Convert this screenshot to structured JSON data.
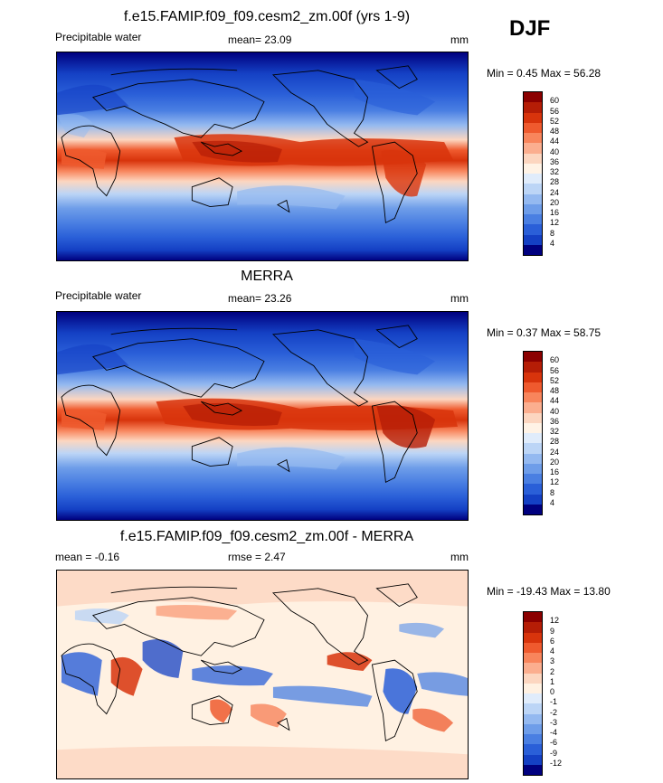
{
  "season": "DJF",
  "panels": [
    {
      "title": "f.e15.FAMIP.f09_f09.cesm2_zm.00f (yrs 1-9)",
      "left_label": "Precipitable water",
      "center_label": "mean=  23.09",
      "units": "mm",
      "minmax": "Min =   0.45 Max =  56.28",
      "colorbar": {
        "ticks": [
          "60",
          "56",
          "52",
          "48",
          "44",
          "40",
          "36",
          "32",
          "28",
          "24",
          "20",
          "16",
          "12",
          "8",
          "4"
        ],
        "colors": [
          "#8b0000",
          "#b51d06",
          "#d8340c",
          "#ef5a2e",
          "#f8855c",
          "#fbae8f",
          "#fcd6c0",
          "#fff3e6",
          "#e0ecfb",
          "#bcd5f6",
          "#94b9f0",
          "#6e9de9",
          "#4a7fe2",
          "#2a5fd8",
          "#1440c4",
          "#00007f"
        ]
      }
    },
    {
      "title": "MERRA",
      "left_label": "Precipitable water",
      "center_label": "mean=  23.26",
      "units": "mm",
      "minmax": "Min =   0.37 Max =  58.75",
      "colorbar": {
        "ticks": [
          "60",
          "56",
          "52",
          "48",
          "44",
          "40",
          "36",
          "32",
          "28",
          "24",
          "20",
          "16",
          "12",
          "8",
          "4"
        ],
        "colors": [
          "#8b0000",
          "#b51d06",
          "#d8340c",
          "#ef5a2e",
          "#f8855c",
          "#fbae8f",
          "#fcd6c0",
          "#fff3e6",
          "#e0ecfb",
          "#bcd5f6",
          "#94b9f0",
          "#6e9de9",
          "#4a7fe2",
          "#2a5fd8",
          "#1440c4",
          "#00007f"
        ]
      }
    },
    {
      "title": "f.e15.FAMIP.f09_f09.cesm2_zm.00f - MERRA",
      "left_label": "mean =  -0.16",
      "center_label": "rmse =   2.47",
      "units": "mm",
      "minmax": "Min = -19.43 Max =  13.80",
      "colorbar": {
        "ticks": [
          "12",
          "9",
          "6",
          "4",
          "3",
          "2",
          "1",
          "0",
          "-1",
          "-2",
          "-3",
          "-4",
          "-6",
          "-9",
          "-12"
        ],
        "colors": [
          "#8b0000",
          "#b51d06",
          "#d8340c",
          "#ef5a2e",
          "#f8855c",
          "#fbae8f",
          "#fcd6c0",
          "#fff1e2",
          "#e0ecfb",
          "#bcd5f6",
          "#94b9f0",
          "#6e9de9",
          "#4a7fe2",
          "#2a5fd8",
          "#1440c4",
          "#00007f"
        ]
      }
    }
  ]
}
